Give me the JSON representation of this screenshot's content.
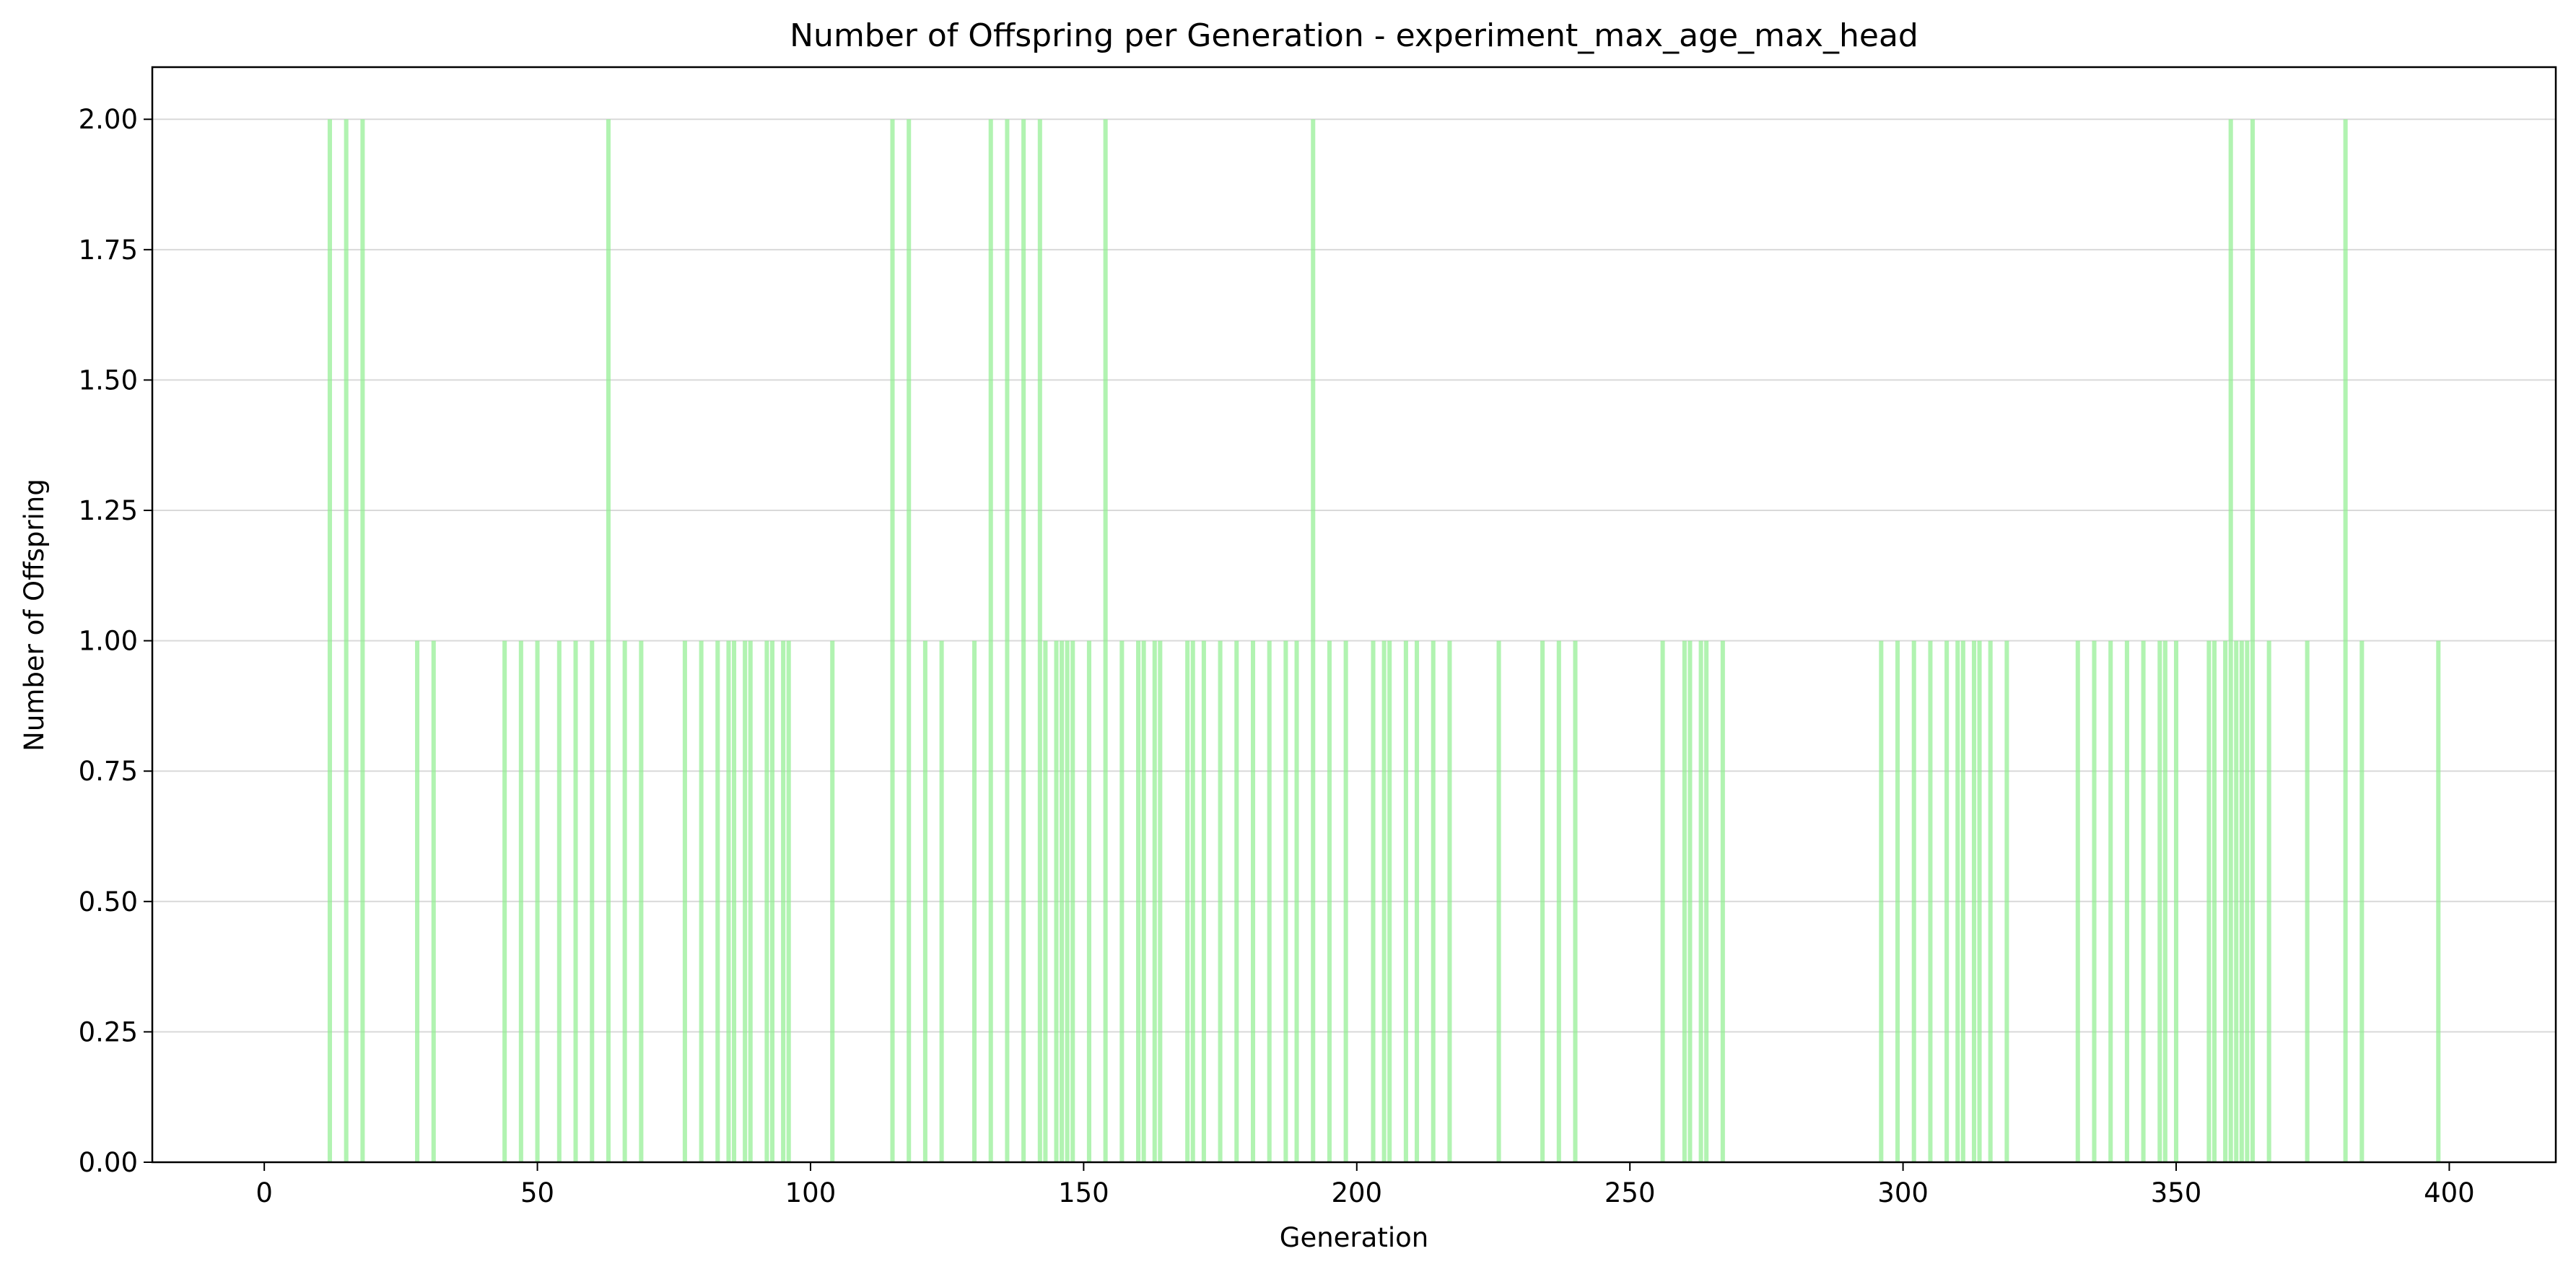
{
  "chart_data": {
    "type": "bar",
    "title": "Number of Offspring per Generation - experiment_max_age_max_head",
    "xlabel": "Generation",
    "ylabel": "Number of Offspring",
    "xlim": [
      -20.5,
      419.5
    ],
    "ylim": [
      0,
      2.1
    ],
    "xticks": [
      0,
      50,
      100,
      150,
      200,
      250,
      300,
      350,
      400
    ],
    "xtick_labels": [
      "0",
      "50",
      "100",
      "150",
      "200",
      "250",
      "300",
      "350",
      "400"
    ],
    "yticks": [
      0,
      0.25,
      0.5,
      0.75,
      1.0,
      1.25,
      1.5,
      1.75,
      2.0
    ],
    "ytick_labels": [
      "0.00",
      "0.25",
      "0.50",
      "0.75",
      "1.00",
      "1.25",
      "1.50",
      "1.75",
      "2.00"
    ],
    "grid": "y",
    "bar_color": "#90ee90",
    "points": [
      {
        "x": 12,
        "y": 2
      },
      {
        "x": 15,
        "y": 2
      },
      {
        "x": 18,
        "y": 2
      },
      {
        "x": 28,
        "y": 1
      },
      {
        "x": 31,
        "y": 1
      },
      {
        "x": 44,
        "y": 1
      },
      {
        "x": 47,
        "y": 1
      },
      {
        "x": 50,
        "y": 1
      },
      {
        "x": 54,
        "y": 1
      },
      {
        "x": 57,
        "y": 1
      },
      {
        "x": 60,
        "y": 1
      },
      {
        "x": 63,
        "y": 2
      },
      {
        "x": 66,
        "y": 1
      },
      {
        "x": 69,
        "y": 1
      },
      {
        "x": 77,
        "y": 1
      },
      {
        "x": 80,
        "y": 1
      },
      {
        "x": 83,
        "y": 1
      },
      {
        "x": 85,
        "y": 1
      },
      {
        "x": 86,
        "y": 1
      },
      {
        "x": 88,
        "y": 1
      },
      {
        "x": 89,
        "y": 1
      },
      {
        "x": 92,
        "y": 1
      },
      {
        "x": 93,
        "y": 1
      },
      {
        "x": 95,
        "y": 1
      },
      {
        "x": 96,
        "y": 1
      },
      {
        "x": 104,
        "y": 1
      },
      {
        "x": 115,
        "y": 2
      },
      {
        "x": 118,
        "y": 2
      },
      {
        "x": 121,
        "y": 1
      },
      {
        "x": 124,
        "y": 1
      },
      {
        "x": 130,
        "y": 1
      },
      {
        "x": 133,
        "y": 2
      },
      {
        "x": 136,
        "y": 2
      },
      {
        "x": 139,
        "y": 2
      },
      {
        "x": 142,
        "y": 2
      },
      {
        "x": 143,
        "y": 1
      },
      {
        "x": 145,
        "y": 1
      },
      {
        "x": 146,
        "y": 1
      },
      {
        "x": 147,
        "y": 1
      },
      {
        "x": 148,
        "y": 1
      },
      {
        "x": 151,
        "y": 1
      },
      {
        "x": 154,
        "y": 2
      },
      {
        "x": 157,
        "y": 1
      },
      {
        "x": 160,
        "y": 1
      },
      {
        "x": 161,
        "y": 1
      },
      {
        "x": 163,
        "y": 1
      },
      {
        "x": 164,
        "y": 1
      },
      {
        "x": 169,
        "y": 1
      },
      {
        "x": 170,
        "y": 1
      },
      {
        "x": 172,
        "y": 1
      },
      {
        "x": 175,
        "y": 1
      },
      {
        "x": 178,
        "y": 1
      },
      {
        "x": 181,
        "y": 1
      },
      {
        "x": 184,
        "y": 1
      },
      {
        "x": 187,
        "y": 1
      },
      {
        "x": 189,
        "y": 1
      },
      {
        "x": 192,
        "y": 2
      },
      {
        "x": 195,
        "y": 1
      },
      {
        "x": 198,
        "y": 1
      },
      {
        "x": 203,
        "y": 1
      },
      {
        "x": 205,
        "y": 1
      },
      {
        "x": 206,
        "y": 1
      },
      {
        "x": 209,
        "y": 1
      },
      {
        "x": 211,
        "y": 1
      },
      {
        "x": 214,
        "y": 1
      },
      {
        "x": 217,
        "y": 1
      },
      {
        "x": 226,
        "y": 1
      },
      {
        "x": 234,
        "y": 1
      },
      {
        "x": 237,
        "y": 1
      },
      {
        "x": 240,
        "y": 1
      },
      {
        "x": 256,
        "y": 1
      },
      {
        "x": 260,
        "y": 1
      },
      {
        "x": 261,
        "y": 1
      },
      {
        "x": 263,
        "y": 1
      },
      {
        "x": 264,
        "y": 1
      },
      {
        "x": 267,
        "y": 1
      },
      {
        "x": 296,
        "y": 1
      },
      {
        "x": 299,
        "y": 1
      },
      {
        "x": 302,
        "y": 1
      },
      {
        "x": 305,
        "y": 1
      },
      {
        "x": 308,
        "y": 1
      },
      {
        "x": 310,
        "y": 1
      },
      {
        "x": 311,
        "y": 1
      },
      {
        "x": 313,
        "y": 1
      },
      {
        "x": 314,
        "y": 1
      },
      {
        "x": 316,
        "y": 1
      },
      {
        "x": 319,
        "y": 1
      },
      {
        "x": 332,
        "y": 1
      },
      {
        "x": 335,
        "y": 1
      },
      {
        "x": 338,
        "y": 1
      },
      {
        "x": 341,
        "y": 1
      },
      {
        "x": 344,
        "y": 1
      },
      {
        "x": 347,
        "y": 1
      },
      {
        "x": 348,
        "y": 1
      },
      {
        "x": 350,
        "y": 1
      },
      {
        "x": 356,
        "y": 1
      },
      {
        "x": 357,
        "y": 1
      },
      {
        "x": 359,
        "y": 1
      },
      {
        "x": 360,
        "y": 2
      },
      {
        "x": 361,
        "y": 1
      },
      {
        "x": 362,
        "y": 1
      },
      {
        "x": 363,
        "y": 1
      },
      {
        "x": 364,
        "y": 2
      },
      {
        "x": 367,
        "y": 1
      },
      {
        "x": 374,
        "y": 1
      },
      {
        "x": 381,
        "y": 2
      },
      {
        "x": 384,
        "y": 1
      },
      {
        "x": 398,
        "y": 1
      }
    ]
  }
}
